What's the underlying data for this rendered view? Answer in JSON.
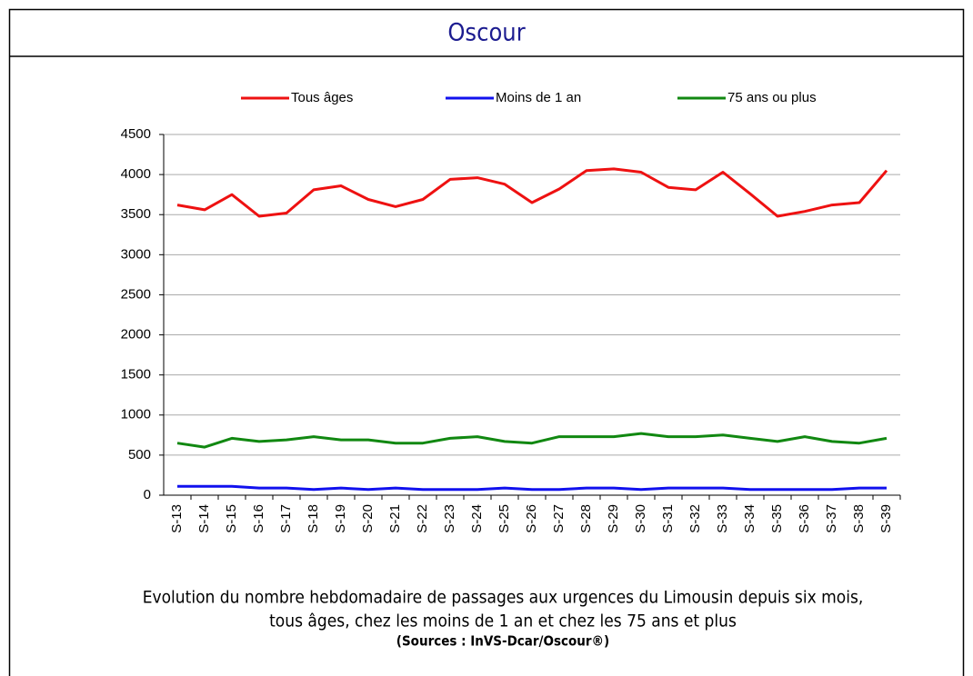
{
  "chart_data": {
    "type": "line",
    "title": "Oscour",
    "categories": [
      "S-13",
      "S-14",
      "S-15",
      "S-16",
      "S-17",
      "S-18",
      "S-19",
      "S-20",
      "S-21",
      "S-22",
      "S-23",
      "S-24",
      "S-25",
      "S-26",
      "S-27",
      "S-28",
      "S-29",
      "S-30",
      "S-31",
      "S-32",
      "S-33",
      "S-34",
      "S-35",
      "S-36",
      "S-37",
      "S-38",
      "S-39"
    ],
    "series": [
      {
        "name": "Tous âges",
        "color": "#ee1111",
        "values": [
          3620,
          3560,
          3750,
          3480,
          3520,
          3810,
          3860,
          3690,
          3600,
          3690,
          3940,
          3960,
          3880,
          3650,
          3820,
          4050,
          4070,
          4030,
          3840,
          3810,
          4030,
          3760,
          3480,
          3540,
          3620,
          3650,
          4050
        ]
      },
      {
        "name": "Moins de 1 an",
        "color": "#1111ee",
        "values": [
          110,
          110,
          110,
          90,
          90,
          70,
          90,
          70,
          90,
          70,
          70,
          70,
          90,
          70,
          70,
          90,
          90,
          70,
          90,
          90,
          90,
          70,
          70,
          70,
          70,
          90,
          90
        ]
      },
      {
        "name": "75 ans ou plus",
        "color": "#118811",
        "values": [
          650,
          600,
          710,
          670,
          690,
          730,
          690,
          690,
          650,
          650,
          710,
          730,
          670,
          650,
          730,
          730,
          730,
          770,
          730,
          730,
          750,
          710,
          670,
          730,
          670,
          650,
          710
        ]
      }
    ],
    "ylim": [
      0,
      4500
    ],
    "yticks": [
      0,
      500,
      1000,
      1500,
      2000,
      2500,
      3000,
      3500,
      4000,
      4500
    ],
    "grid": true,
    "legend": "top",
    "caption": [
      "Evolution du nombre hebdomadaire de passages aux urgences du Limousin depuis six mois,",
      "tous âges, chez les moins de 1 an et chez les 75 ans et plus"
    ],
    "source": "(Sources : InVS-Dcar/Oscour®)"
  }
}
